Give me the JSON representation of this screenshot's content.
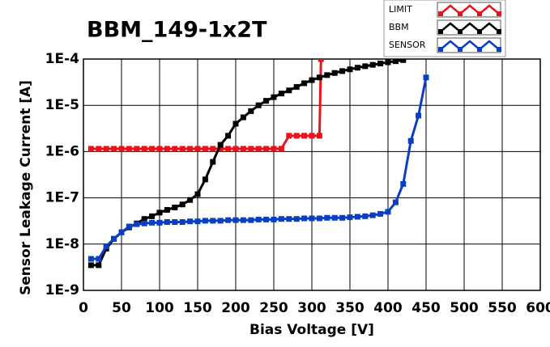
{
  "chart_data": {
    "type": "line",
    "title": "BBM_149-1x2T",
    "x_label": "Bias Voltage [V]",
    "y_label": "Sensor Leakage Current [A]",
    "y_scale": "log",
    "grid": true,
    "legend": "top-right",
    "xlim": [
      0,
      600
    ],
    "xticks": [
      0,
      50,
      100,
      150,
      200,
      250,
      300,
      350,
      400,
      450,
      500,
      550,
      600
    ],
    "ylim": [
      1e-09,
      0.0001
    ],
    "yticks": [
      {
        "value": 1e-09,
        "label": "1E-9"
      },
      {
        "value": 1e-08,
        "label": "1E-8"
      },
      {
        "value": 1e-07,
        "label": "1E-7"
      },
      {
        "value": 1e-06,
        "label": "1E-6"
      },
      {
        "value": 1e-05,
        "label": "1E-5"
      },
      {
        "value": 0.0001,
        "label": "1E-4"
      }
    ],
    "series": [
      {
        "name": "LIMIT",
        "color": "#e8141c",
        "x": [
          10,
          20,
          30,
          40,
          50,
          60,
          70,
          80,
          90,
          100,
          110,
          120,
          130,
          140,
          150,
          160,
          170,
          180,
          190,
          200,
          210,
          220,
          230,
          240,
          250,
          260,
          270,
          280,
          290,
          300,
          310,
          312
        ],
        "values": [
          1.15e-06,
          1.15e-06,
          1.15e-06,
          1.15e-06,
          1.15e-06,
          1.15e-06,
          1.15e-06,
          1.15e-06,
          1.15e-06,
          1.15e-06,
          1.15e-06,
          1.15e-06,
          1.15e-06,
          1.15e-06,
          1.15e-06,
          1.15e-06,
          1.15e-06,
          1.15e-06,
          1.15e-06,
          1.15e-06,
          1.15e-06,
          1.15e-06,
          1.15e-06,
          1.15e-06,
          1.15e-06,
          1.15e-06,
          2.2e-06,
          2.2e-06,
          2.2e-06,
          2.2e-06,
          2.2e-06,
          0.0001
        ]
      },
      {
        "name": "BBM",
        "color": "#000000",
        "x": [
          10,
          20,
          30,
          40,
          50,
          60,
          70,
          80,
          90,
          100,
          110,
          120,
          130,
          140,
          150,
          160,
          170,
          180,
          190,
          200,
          210,
          220,
          230,
          240,
          250,
          260,
          270,
          280,
          290,
          300,
          310,
          320,
          330,
          340,
          350,
          360,
          370,
          380,
          390,
          400,
          410,
          420
        ],
        "values": [
          3.5e-09,
          3.5e-09,
          8e-09,
          1.3e-08,
          1.8e-08,
          2.3e-08,
          2.8e-08,
          3.5e-08,
          4e-08,
          4.8e-08,
          5.5e-08,
          6.2e-08,
          7.2e-08,
          9e-08,
          1.2e-07,
          2.5e-07,
          6e-07,
          1.4e-06,
          2.2e-06,
          4e-06,
          5.5e-06,
          7.5e-06,
          1e-05,
          1.25e-05,
          1.5e-05,
          1.8e-05,
          2.1e-05,
          2.5e-05,
          3e-05,
          3.5e-05,
          4e-05,
          4.5e-05,
          5e-05,
          5.5e-05,
          6e-05,
          6.5e-05,
          7e-05,
          7.5e-05,
          8e-05,
          8.5e-05,
          9e-05,
          9.5e-05
        ]
      },
      {
        "name": "SENSOR",
        "color": "#0a3fc4",
        "x": [
          10,
          20,
          30,
          40,
          50,
          60,
          70,
          80,
          90,
          100,
          110,
          120,
          130,
          140,
          150,
          160,
          170,
          180,
          190,
          200,
          210,
          220,
          230,
          240,
          250,
          260,
          270,
          280,
          290,
          300,
          310,
          320,
          330,
          340,
          350,
          360,
          370,
          380,
          390,
          400,
          410,
          420,
          430,
          440,
          450
        ],
        "values": [
          4.8e-09,
          4.8e-09,
          9e-09,
          1.3e-08,
          1.8e-08,
          2.4e-08,
          2.7e-08,
          2.8e-08,
          2.9e-08,
          2.9e-08,
          3e-08,
          3e-08,
          3e-08,
          3.1e-08,
          3.1e-08,
          3.2e-08,
          3.2e-08,
          3.2e-08,
          3.3e-08,
          3.3e-08,
          3.3e-08,
          3.3e-08,
          3.4e-08,
          3.4e-08,
          3.4e-08,
          3.5e-08,
          3.5e-08,
          3.5e-08,
          3.6e-08,
          3.6e-08,
          3.6e-08,
          3.7e-08,
          3.7e-08,
          3.7e-08,
          3.8e-08,
          3.9e-08,
          4e-08,
          4.2e-08,
          4.5e-08,
          5e-08,
          8e-08,
          2e-07,
          1.7e-06,
          6e-06,
          4e-05
        ]
      }
    ]
  }
}
